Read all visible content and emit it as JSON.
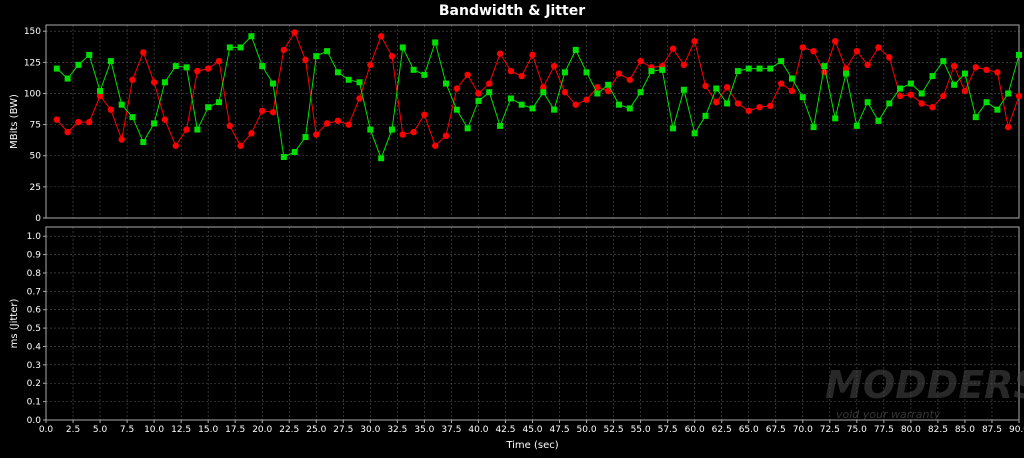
{
  "chart_data": {
    "title": "Bandwidth & Jitter",
    "type": "line",
    "xlabel": "Time (sec)",
    "xlim": [
      0,
      90
    ],
    "x_ticks": [
      "0.0",
      "2.5",
      "5.0",
      "7.5",
      "10.0",
      "12.5",
      "15.0",
      "17.5",
      "20.0",
      "22.5",
      "25.0",
      "27.5",
      "30.0",
      "32.5",
      "35.0",
      "37.5",
      "40.0",
      "42.5",
      "45.0",
      "47.5",
      "50.0",
      "52.5",
      "55.0",
      "57.5",
      "60.0",
      "62.5",
      "65.0",
      "67.5",
      "70.0",
      "72.5",
      "75.0",
      "77.5",
      "80.0",
      "82.5",
      "85.0",
      "87.5",
      "90.0"
    ],
    "grid": true,
    "background": "#000000",
    "gridline_color": "#555555",
    "panels": [
      {
        "ylabel": "MBits (BW)",
        "ylim": [
          0,
          155
        ],
        "y_ticks": [
          "0",
          "25",
          "50",
          "75",
          "100",
          "125",
          "150"
        ],
        "y_tick_values": [
          0,
          25,
          50,
          75,
          100,
          125,
          150
        ],
        "series": [
          {
            "color": "#ff0000",
            "marker": "circle",
            "x": [
              1,
              2,
              3,
              4,
              5,
              6,
              7,
              8,
              9,
              10,
              11,
              12,
              13,
              14,
              15,
              16,
              17,
              18,
              19,
              20,
              21,
              22,
              23,
              24,
              25,
              26,
              27,
              28,
              29,
              30,
              31,
              32,
              33,
              34,
              35,
              36,
              37,
              38,
              39,
              40,
              41,
              42,
              43,
              44,
              45,
              46,
              47,
              48,
              49,
              50,
              51,
              52,
              53,
              54,
              55,
              56,
              57,
              58,
              59,
              60,
              61,
              62,
              63,
              64,
              65,
              66,
              67,
              68,
              69,
              70,
              71,
              72,
              73,
              74,
              75,
              76,
              77,
              78,
              79,
              80,
              81,
              82,
              83,
              84,
              85,
              86,
              87,
              88,
              89,
              90
            ],
            "values": [
              79,
              69,
              77,
              77,
              98,
              87,
              63,
              111,
              133,
              109,
              79,
              58,
              71,
              118,
              120,
              126,
              74,
              58,
              68,
              86,
              85,
              135,
              149,
              127,
              67,
              76,
              78,
              75,
              96,
              123,
              146,
              130,
              67,
              69,
              83,
              58,
              66,
              104,
              115,
              100,
              108,
              132,
              118,
              114,
              131,
              105,
              122,
              101,
              91,
              95,
              105,
              102,
              116,
              111,
              126,
              121,
              122,
              136,
              123,
              142,
              106,
              93,
              105,
              92,
              86,
              89,
              90,
              108,
              102,
              137,
              134,
              117,
              142,
              120,
              134,
              123,
              137,
              129,
              98,
              99,
              92,
              89,
              98,
              122,
              102,
              121,
              119,
              117,
              73,
              98
            ]
          },
          {
            "color": "#00e000",
            "marker": "square",
            "x": [
              1,
              2,
              3,
              4,
              5,
              6,
              7,
              8,
              9,
              10,
              11,
              12,
              13,
              14,
              15,
              16,
              17,
              18,
              19,
              20,
              21,
              22,
              23,
              24,
              25,
              26,
              27,
              28,
              29,
              30,
              31,
              32,
              33,
              34,
              35,
              36,
              37,
              38,
              39,
              40,
              41,
              42,
              43,
              44,
              45,
              46,
              47,
              48,
              49,
              50,
              51,
              52,
              53,
              54,
              55,
              56,
              57,
              58,
              59,
              60,
              61,
              62,
              63,
              64,
              65,
              66,
              67,
              68,
              69,
              70,
              71,
              72,
              73,
              74,
              75,
              76,
              77,
              78,
              79,
              80,
              81,
              82,
              83,
              84,
              85,
              86,
              87,
              88,
              89,
              90
            ],
            "values": [
              120,
              112,
              123,
              131,
              102,
              126,
              91,
              81,
              61,
              76,
              109,
              122,
              121,
              71,
              89,
              93,
              137,
              137,
              146,
              122,
              108,
              49,
              53,
              65,
              130,
              134,
              117,
              111,
              109,
              71,
              48,
              71,
              137,
              119,
              115,
              141,
              108,
              87,
              72,
              94,
              101,
              74,
              96,
              91,
              88,
              101,
              87,
              117,
              135,
              117,
              100,
              107,
              91,
              88,
              101,
              118,
              119,
              72,
              103,
              68,
              82,
              104,
              92,
              118,
              120,
              120,
              120,
              126,
              112,
              97,
              73,
              122,
              80,
              116,
              74,
              93,
              78,
              92,
              104,
              108,
              100,
              114,
              126,
              107,
              116,
              81,
              93,
              87,
              100,
              131
            ]
          }
        ]
      },
      {
        "ylabel": "ms (Jitter)",
        "ylim": [
          0,
          1.05
        ],
        "y_ticks": [
          "0.0",
          "0.1",
          "0.2",
          "0.3",
          "0.4",
          "0.5",
          "0.6",
          "0.7",
          "0.8",
          "0.9",
          "1.0"
        ],
        "y_tick_values": [
          0,
          0.1,
          0.2,
          0.3,
          0.4,
          0.5,
          0.6,
          0.7,
          0.8,
          0.9,
          1.0
        ],
        "series": []
      }
    ]
  },
  "watermark": {
    "brand": "MODDERS INC.",
    "tagline": "void your warranty"
  }
}
